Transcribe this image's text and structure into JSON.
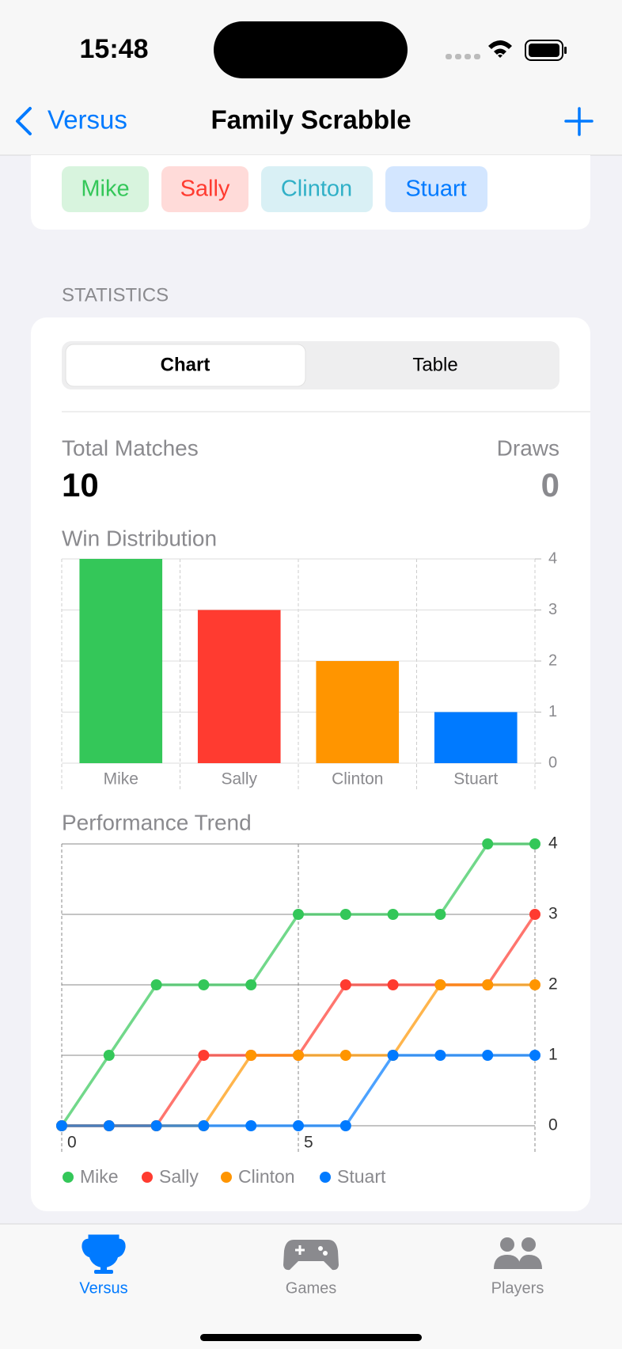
{
  "status_bar": {
    "time": "15:48"
  },
  "nav": {
    "back": "Versus",
    "title": "Family Scrabble"
  },
  "players": [
    "Mike",
    "Sally",
    "Clinton",
    "Stuart"
  ],
  "section": "STATISTICS",
  "segmented": [
    "Chart",
    "Table"
  ],
  "summary": {
    "total_label": "Total Matches",
    "total": 10,
    "draws_label": "Draws",
    "draws": 0
  },
  "chart_data": [
    {
      "type": "bar",
      "title": "Win Distribution",
      "categories": [
        "Mike",
        "Sally",
        "Clinton",
        "Stuart"
      ],
      "values": [
        4,
        3,
        2,
        1
      ],
      "colors": [
        "#34c759",
        "#ff3b30",
        "#ff9500",
        "#007aff"
      ],
      "ylim": [
        0,
        4
      ],
      "yticks": [
        0,
        1,
        2,
        3,
        4
      ],
      "grid": true
    },
    {
      "type": "line",
      "title": "Performance Trend",
      "x": [
        0,
        1,
        2,
        3,
        4,
        5,
        6,
        7,
        8,
        9,
        10
      ],
      "series": [
        {
          "name": "Mike",
          "color": "#34c759",
          "values": [
            0,
            1,
            2,
            2,
            2,
            3,
            3,
            3,
            3,
            4,
            4
          ]
        },
        {
          "name": "Sally",
          "color": "#ff3b30",
          "values": [
            0,
            0,
            0,
            1,
            1,
            1,
            2,
            2,
            2,
            2,
            3
          ]
        },
        {
          "name": "Clinton",
          "color": "#ff9500",
          "values": [
            0,
            0,
            0,
            0,
            1,
            1,
            1,
            1,
            2,
            2,
            2
          ]
        },
        {
          "name": "Stuart",
          "color": "#007aff",
          "values": [
            0,
            0,
            0,
            0,
            0,
            0,
            0,
            1,
            1,
            1,
            1
          ]
        }
      ],
      "xlim": [
        0,
        10
      ],
      "xticks": [
        0,
        5
      ],
      "ylim": [
        0,
        4
      ],
      "yticks": [
        0,
        1,
        2,
        3,
        4
      ],
      "grid": true
    }
  ],
  "tab_bar": [
    "Versus",
    "Games",
    "Players"
  ]
}
